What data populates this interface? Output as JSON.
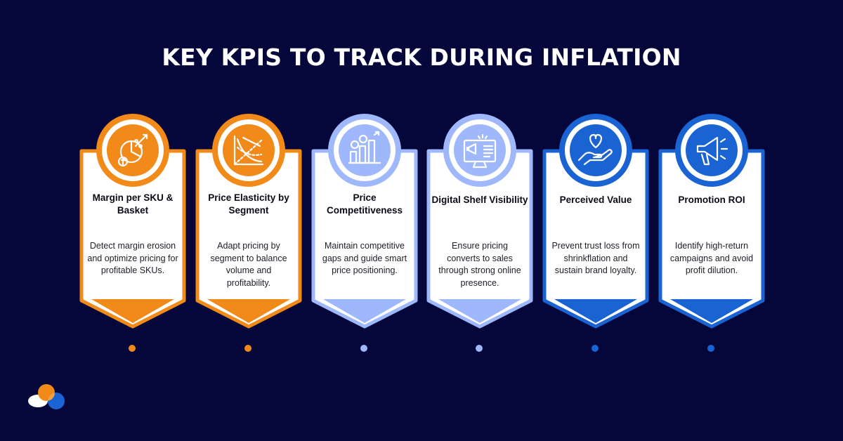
{
  "title": "KEY KPIS TO TRACK DURING INFLATION",
  "cards": [
    {
      "title": "Margin per SKU & Basket",
      "desc": "Detect margin erosion and optimize pricing for profitable SKUs.",
      "color": "#f28a1a",
      "icon": "margin-chart-icon"
    },
    {
      "title": "Price Elasticity by Segment",
      "desc": "Adapt pricing by segment to balance volume and profitability.",
      "color": "#f28a1a",
      "icon": "elasticity-graph-icon"
    },
    {
      "title": "Price Competitiveness",
      "desc": "Maintain competitive gaps and guide smart price positioning.",
      "color": "#9fb8fb",
      "icon": "price-bars-icon"
    },
    {
      "title": "Digital Shelf Visibility",
      "desc": "Ensure pricing converts to sales through strong online presence.",
      "color": "#9fb8fb",
      "icon": "monitor-megaphone-icon"
    },
    {
      "title": "Perceived Value",
      "desc": "Prevent trust loss from shrinkflation and sustain brand loyalty.",
      "color": "#1a63d2",
      "icon": "heart-hand-icon"
    },
    {
      "title": "Promotion ROI",
      "desc": "Identify high-return campaigns and avoid profit dilution.",
      "color": "#1a63d2",
      "icon": "megaphone-icon"
    }
  ],
  "colors": {
    "background": "#05063a",
    "orange": "#f28a1a",
    "light_blue": "#9fb8fb",
    "blue": "#1a63d2"
  }
}
